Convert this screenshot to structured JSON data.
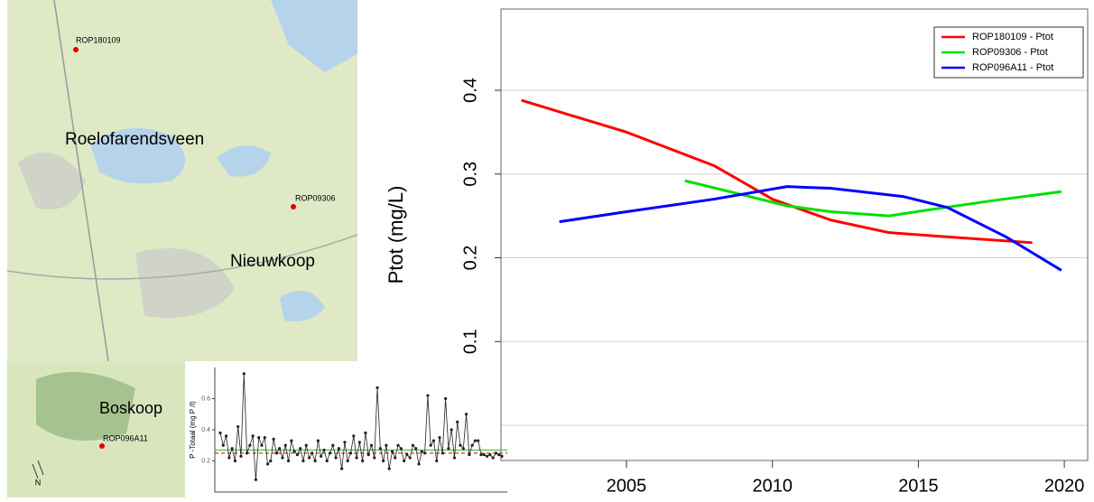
{
  "map": {
    "labels": [
      "ROP180109",
      "Roelofarendsveen",
      "ROP09306",
      "Nieuwkoop",
      "Boskoop",
      "ROP096A11",
      "N"
    ]
  },
  "chart_data": [
    {
      "type": "line",
      "y_label": "Ptot (mg/L)",
      "xlim": [
        2000.7,
        2020.8
      ],
      "xticks": [
        2005,
        2010,
        2015,
        2020
      ],
      "ylim": [
        -0.042,
        0.497
      ],
      "yticks": [
        0.1,
        0.2,
        0.3,
        0.4
      ],
      "grid_lines": [
        0,
        0.1,
        0.2,
        0.3,
        0.4
      ],
      "legend": "top-right",
      "series": [
        {
          "name": "ROP180109 - Ptot",
          "color": "#ff0000",
          "x": [
            2001.4,
            2005,
            2008,
            2010,
            2012,
            2014,
            2016,
            2018.9
          ],
          "values": [
            0.388,
            0.35,
            0.31,
            0.27,
            0.245,
            0.23,
            0.225,
            0.218
          ]
        },
        {
          "name": "ROP09306 - Ptot",
          "color": "#00e000",
          "x": [
            2007,
            2009,
            2010.5,
            2012,
            2014,
            2015.5,
            2017.5,
            2019.9
          ],
          "values": [
            0.292,
            0.275,
            0.262,
            0.255,
            0.25,
            0.258,
            0.268,
            0.279
          ]
        },
        {
          "name": "ROP096A11 - Ptot",
          "color": "#0000ff",
          "x": [
            2002.7,
            2005,
            2008,
            2010.5,
            2012,
            2014.5,
            2016,
            2018,
            2019.9
          ],
          "values": [
            0.243,
            0.255,
            0.27,
            0.285,
            0.283,
            0.273,
            0.26,
            0.225,
            0.185
          ]
        }
      ]
    },
    {
      "type": "line",
      "y_label": "P -Totaal (mg P /l)",
      "ylim": [
        0,
        0.8
      ],
      "yticks": [
        0.2,
        0.4,
        0.6
      ],
      "color": "#222222",
      "reference_lines": [
        {
          "value": 0.25,
          "color": "#e03030",
          "dash": true
        },
        {
          "value": 0.27,
          "color": "#40c040",
          "dash": false
        }
      ],
      "values": [
        0.38,
        0.3,
        0.36,
        0.22,
        0.28,
        0.2,
        0.42,
        0.23,
        0.76,
        0.25,
        0.3,
        0.36,
        0.08,
        0.35,
        0.3,
        0.35,
        0.18,
        0.2,
        0.34,
        0.25,
        0.28,
        0.22,
        0.3,
        0.2,
        0.33,
        0.26,
        0.24,
        0.28,
        0.2,
        0.3,
        0.22,
        0.25,
        0.2,
        0.33,
        0.23,
        0.27,
        0.2,
        0.25,
        0.3,
        0.22,
        0.28,
        0.15,
        0.32,
        0.2,
        0.25,
        0.36,
        0.22,
        0.32,
        0.2,
        0.38,
        0.24,
        0.3,
        0.22,
        0.67,
        0.28,
        0.2,
        0.3,
        0.15,
        0.26,
        0.22,
        0.3,
        0.28,
        0.2,
        0.24,
        0.22,
        0.3,
        0.28,
        0.18,
        0.26,
        0.25,
        0.62,
        0.3,
        0.33,
        0.2,
        0.35,
        0.25,
        0.6,
        0.28,
        0.4,
        0.22,
        0.45,
        0.3,
        0.28,
        0.5,
        0.24,
        0.3,
        0.33,
        0.33,
        0.24,
        0.24,
        0.23,
        0.24,
        0.22,
        0.25,
        0.24,
        0.23
      ]
    }
  ]
}
